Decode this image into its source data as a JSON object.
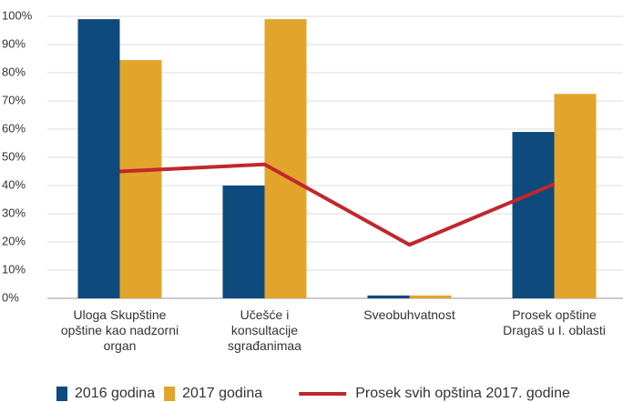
{
  "chart_data": {
    "type": "bar",
    "categories": [
      "Uloga Skupštine\nopštine kao nadzorni\norgan",
      "Učešće i\nkonsultacije\nsgrađanimaa",
      "Sveobuhvatnost",
      "Prosek opštine\nDragaš u I. oblasti"
    ],
    "series": [
      {
        "name": "2016 godina",
        "color": "#0e4a7c",
        "values": [
          99,
          40,
          1,
          59
        ]
      },
      {
        "name": "2017 godina",
        "color": "#e2a42b",
        "values": [
          84.5,
          99,
          1,
          72.5
        ]
      },
      {
        "name": "Prosek svih opština 2017. godine",
        "color": "#c1272d",
        "type": "line",
        "values": [
          45,
          47.5,
          19,
          40.5
        ]
      }
    ],
    "ylim": [
      0,
      100
    ],
    "yticks": [
      {
        "value": 0,
        "label": "0%"
      },
      {
        "value": 10,
        "label": "10%"
      },
      {
        "value": 20,
        "label": "20%"
      },
      {
        "value": 30,
        "label": "30%"
      },
      {
        "value": 40,
        "label": "40%"
      },
      {
        "value": 50,
        "label": "50%"
      },
      {
        "value": 60,
        "label": "60%"
      },
      {
        "value": 70,
        "label": "70%"
      },
      {
        "value": 80,
        "label": "80%"
      },
      {
        "value": 90,
        "label": "90%"
      },
      {
        "value": 100,
        "label": "100%"
      }
    ],
    "grid": true,
    "legend": "bottom"
  }
}
